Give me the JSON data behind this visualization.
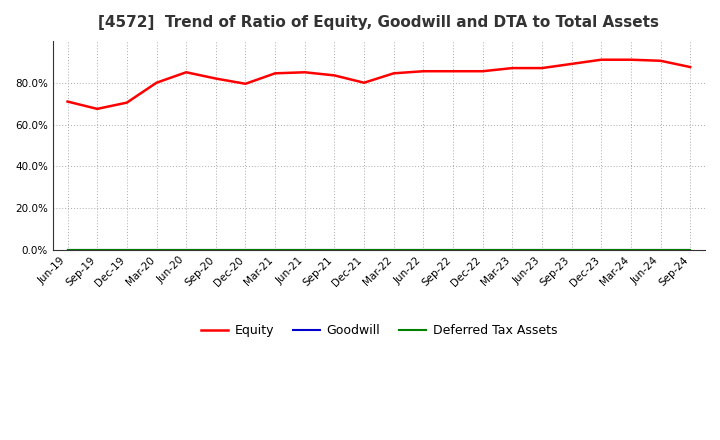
{
  "title": "[4572]  Trend of Ratio of Equity, Goodwill and DTA to Total Assets",
  "x_labels": [
    "Jun-19",
    "Sep-19",
    "Dec-19",
    "Mar-20",
    "Jun-20",
    "Sep-20",
    "Dec-20",
    "Mar-21",
    "Jun-21",
    "Sep-21",
    "Dec-21",
    "Mar-22",
    "Jun-22",
    "Sep-22",
    "Dec-22",
    "Mar-23",
    "Jun-23",
    "Sep-23",
    "Dec-23",
    "Mar-24",
    "Jun-24",
    "Sep-24"
  ],
  "equity": [
    0.71,
    0.675,
    0.705,
    0.8,
    0.85,
    0.82,
    0.795,
    0.845,
    0.85,
    0.835,
    0.8,
    0.845,
    0.855,
    0.855,
    0.855,
    0.87,
    0.87,
    0.89,
    0.91,
    0.91,
    0.905,
    0.875
  ],
  "goodwill": [
    0,
    0,
    0,
    0,
    0,
    0,
    0,
    0,
    0,
    0,
    0,
    0,
    0,
    0,
    0,
    0,
    0,
    0,
    0,
    0,
    0,
    0
  ],
  "dta": [
    0,
    0,
    0,
    0,
    0,
    0,
    0,
    0,
    0,
    0,
    0,
    0,
    0,
    0,
    0,
    0,
    0,
    0,
    0,
    0,
    0,
    0
  ],
  "equity_color": "#FF0000",
  "goodwill_color": "#0000CD",
  "dta_color": "#008000",
  "background_color": "#FFFFFF",
  "plot_bg_color": "#FFFFFF",
  "grid_color": "#AAAAAA",
  "ylim": [
    0.0,
    1.0
  ],
  "yticks": [
    0.0,
    0.2,
    0.4,
    0.6,
    0.8
  ],
  "title_fontsize": 11,
  "tick_fontsize": 7.5,
  "legend_fontsize": 9
}
